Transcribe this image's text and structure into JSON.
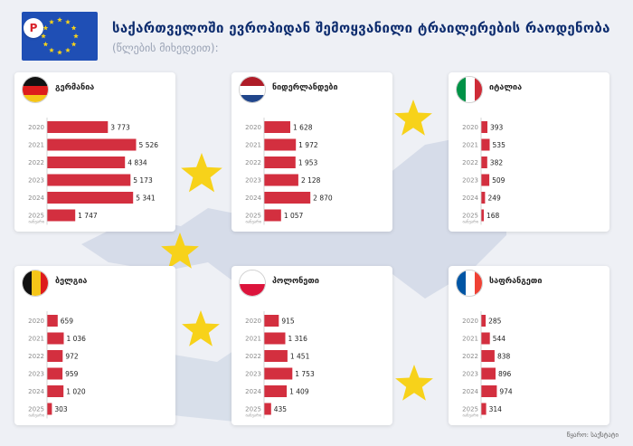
{
  "header": {
    "title": "საქართველოში ევროპიდან შემოყვანილი ტრაილერების რაოდენობა",
    "subtitle": "(წლების მიხედვით):",
    "flag_color": "#1f4fb5",
    "star_color": "#f7d21a"
  },
  "source": "წყარო: საქსტატი",
  "chart_data": [
    {
      "type": "bar",
      "country": "გერმანია",
      "categories": [
        "2020",
        "2021",
        "2022",
        "2023",
        "2024",
        "2025"
      ],
      "category_note": "იანვარი",
      "values": [
        3773,
        5526,
        4834,
        5173,
        5341,
        1747
      ],
      "value_labels": [
        "3 773",
        "5 526",
        "4 834",
        "5 173",
        "5 341",
        "1 747"
      ],
      "bar_color": "#d32f3f",
      "xlim": [
        0,
        6000
      ]
    },
    {
      "type": "bar",
      "country": "ნიდერლანდები",
      "categories": [
        "2020",
        "2021",
        "2022",
        "2023",
        "2024",
        "2025"
      ],
      "category_note": "იანვარი",
      "values": [
        1628,
        1972,
        1953,
        2128,
        2870,
        1057
      ],
      "value_labels": [
        "1 628",
        "1 972",
        "1 953",
        "2 128",
        "2 870",
        "1 057"
      ],
      "bar_color": "#d32f3f",
      "xlim": [
        0,
        6000
      ]
    },
    {
      "type": "bar",
      "country": "იტალია",
      "categories": [
        "2020",
        "2021",
        "2022",
        "2023",
        "2024",
        "2025"
      ],
      "category_note": "იანვარი",
      "values": [
        393,
        535,
        382,
        509,
        249,
        168
      ],
      "value_labels": [
        "393",
        "535",
        "382",
        "509",
        "249",
        "168"
      ],
      "bar_color": "#d32f3f",
      "xlim": [
        0,
        6000
      ]
    },
    {
      "type": "bar",
      "country": "ბელგია",
      "categories": [
        "2020",
        "2021",
        "2022",
        "2023",
        "2024",
        "2025"
      ],
      "category_note": "იანვარი",
      "values": [
        659,
        1036,
        972,
        959,
        1020,
        303
      ],
      "value_labels": [
        "659",
        "1 036",
        "972",
        "959",
        "1 020",
        "303"
      ],
      "bar_color": "#d32f3f",
      "xlim": [
        0,
        6000
      ]
    },
    {
      "type": "bar",
      "country": "პოლონეთი",
      "categories": [
        "2020",
        "2021",
        "2022",
        "2023",
        "2024",
        "2025"
      ],
      "category_note": "იანვარი",
      "values": [
        915,
        1316,
        1451,
        1753,
        1409,
        435
      ],
      "value_labels": [
        "915",
        "1 316",
        "1 451",
        "1 753",
        "1 409",
        "435"
      ],
      "bar_color": "#d32f3f",
      "xlim": [
        0,
        6000
      ]
    },
    {
      "type": "bar",
      "country": "საფრანგეთი",
      "categories": [
        "2020",
        "2021",
        "2022",
        "2023",
        "2024",
        "2025"
      ],
      "category_note": "იანვარი",
      "values": [
        285,
        544,
        838,
        896,
        974,
        314
      ],
      "value_labels": [
        "285",
        "544",
        "838",
        "896",
        "974",
        "314"
      ],
      "bar_color": "#d32f3f",
      "xlim": [
        0,
        6000
      ]
    }
  ]
}
